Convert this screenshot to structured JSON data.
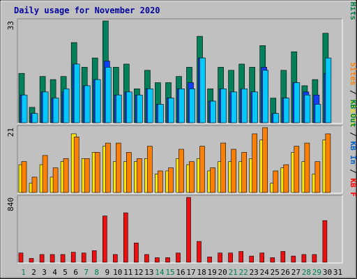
{
  "chart_data": {
    "title": "Daily usage for November 2020",
    "type": "bar",
    "x": [
      "1",
      "2",
      "3",
      "4",
      "5",
      "6",
      "7",
      "8",
      "9",
      "10",
      "11",
      "12",
      "13",
      "14",
      "15",
      "16",
      "17",
      "18",
      "19",
      "20",
      "21",
      "22",
      "23",
      "24",
      "25",
      "26",
      "27",
      "28",
      "29",
      "30",
      "31"
    ],
    "weekend_days": [
      "1",
      "7",
      "8",
      "14",
      "15",
      "21",
      "22",
      "28",
      "29"
    ],
    "panels": [
      {
        "id": "hits",
        "max_label": "33",
        "ymax": 33,
        "legend": [
          {
            "text": "Hits",
            "color": "#008040"
          },
          {
            "text": " / ",
            "color": "#000000"
          },
          {
            "text": "Files",
            "color": "#0040ff"
          },
          {
            "text": " / ",
            "color": "#000000"
          },
          {
            "text": "Pages",
            "color": "#00c0ff"
          }
        ],
        "series": [
          {
            "name": "Hits",
            "color": "#00805a",
            "values": [
              16,
              5,
              15,
              14,
              15,
              26,
              18,
              21,
              33,
              18,
              19,
              11,
              17,
              13,
              13,
              15,
              18,
              28,
              11,
              18,
              17,
              19,
              18,
              25,
              8,
              17,
              23,
              12,
              14,
              29,
              0
            ]
          },
          {
            "name": "Files",
            "color": "#1040ff",
            "values": [
              9,
              3,
              10,
              8,
              10,
              19,
              12,
              14,
              20,
              9,
              10,
              9,
              11,
              6,
              8,
              11,
              13,
              21,
              7,
              11,
              10,
              11,
              10,
              18,
              3,
              8,
              13,
              10,
              9,
              16,
              0
            ]
          },
          {
            "name": "Pages",
            "color": "#00c8ff",
            "values": [
              9,
              3,
              10,
              8,
              11,
              19,
              12,
              14,
              18,
              9,
              10,
              9,
              11,
              6,
              8,
              11,
              11,
              21,
              7,
              11,
              10,
              11,
              10,
              17,
              3,
              8,
              13,
              9,
              6,
              21,
              0
            ]
          }
        ]
      },
      {
        "id": "visits",
        "max_label": "21",
        "ymax": 21,
        "legend": [
          {
            "text": "Visits",
            "color": "#e0e000"
          },
          {
            "text": " / ",
            "color": "#000000"
          },
          {
            "text": "Sites",
            "color": "#ff8000"
          }
        ],
        "series": [
          {
            "name": "Visits",
            "color": "#ffe600",
            "values": [
              9,
              3,
              9,
              5,
              10,
              19,
              11,
              13,
              15,
              10,
              10,
              10,
              11,
              6,
              7,
              11,
              9,
              11,
              7,
              10,
              10,
              10,
              11,
              17,
              3,
              8,
              13,
              10,
              6,
              17,
              0
            ]
          },
          {
            "name": "Sites",
            "color": "#ff8000",
            "values": [
              10,
              5,
              12,
              8,
              11,
              18,
              11,
              13,
              16,
              16,
              13,
              11,
              15,
              7,
              8,
              14,
              10,
              15,
              8,
              16,
              14,
              13,
              19,
              21,
              7,
              9,
              15,
              16,
              10,
              19,
              0
            ]
          }
        ]
      },
      {
        "id": "kbytes",
        "max_label": "840",
        "ymax": 840,
        "legend": [
          {
            "text": "KB F",
            "color": "#ff0000"
          },
          {
            "text": " / ",
            "color": "#000000"
          },
          {
            "text": "KB In",
            "color": "#0060c0"
          },
          {
            "text": " / ",
            "color": "#000000"
          },
          {
            "text": "KB Out",
            "color": "#008040"
          }
        ],
        "series": [
          {
            "name": "KB F",
            "color": "#ee1010",
            "values": [
              120,
              50,
              100,
              100,
              100,
              130,
              120,
              150,
              600,
              100,
              640,
              250,
              100,
              60,
              60,
              120,
              840,
              270,
              70,
              120,
              120,
              140,
              80,
              120,
              60,
              140,
              80,
              100,
              100,
              540,
              0
            ]
          }
        ]
      }
    ]
  }
}
